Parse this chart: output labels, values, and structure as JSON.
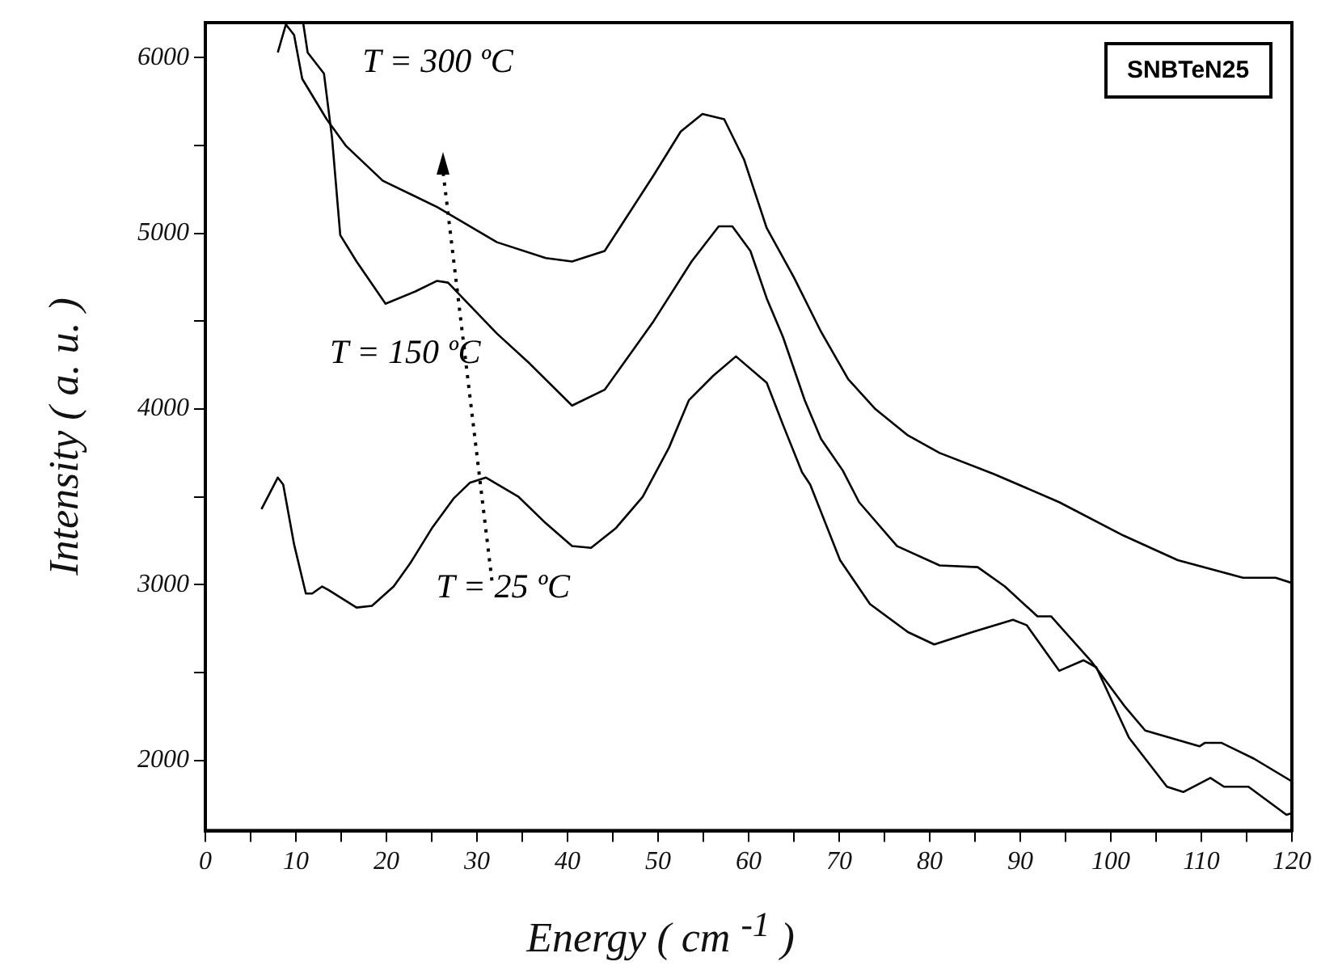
{
  "chart_data": {
    "type": "line",
    "xlabel": "Energy ( cm $^{-1}$ )",
    "ylabel": "Intensity ( a. u. )",
    "xlim": [
      0,
      120
    ],
    "ylim": [
      1600,
      6200
    ],
    "xticks": [
      0,
      {
        "value": 5,
        "label": null
      },
      10,
      {
        "value": 15,
        "label": null
      },
      20,
      {
        "value": 25,
        "label": null
      },
      30,
      {
        "value": 35,
        "label": null
      },
      40,
      {
        "value": 45,
        "label": null
      },
      50,
      {
        "value": 55,
        "label": null
      },
      60,
      {
        "value": 65,
        "label": null
      },
      70,
      {
        "value": 75,
        "label": null
      },
      80,
      {
        "value": 85,
        "label": null
      },
      90,
      {
        "value": 95,
        "label": null
      },
      100,
      {
        "value": 105,
        "label": null
      },
      110,
      {
        "value": 115,
        "label": null
      },
      120
    ],
    "yticks": [
      2000,
      {
        "value": 2500,
        "label": null
      },
      3000,
      {
        "value": 3500,
        "label": null
      },
      4000,
      {
        "value": 4500,
        "label": null
      },
      5000,
      {
        "value": 5500,
        "label": null
      },
      6000
    ],
    "grid": false,
    "legend": false,
    "marker": "none",
    "line_style": "solid",
    "series": [
      {
        "color": "#000000",
        "x": [
          6.2,
          8.0,
          8.6,
          9.8,
          11.1,
          11.8,
          12.9,
          13.6,
          16.7,
          18.4,
          20.8,
          22.6,
          25.0,
          27.4,
          29.2,
          31.0,
          34.6,
          37.6,
          40.5,
          42.6,
          45.3,
          48.3,
          51.2,
          53.4,
          56.1,
          58.6,
          62.0,
          63.8,
          65.9,
          66.8,
          70.1,
          73.4,
          77.6,
          80.5,
          84.7,
          89.2,
          90.7,
          94.3,
          97.0,
          98.4,
          102.0,
          106.2,
          108.0,
          111.0,
          112.5,
          115.2,
          119.4,
          120
        ],
        "values": [
          3430,
          3610,
          3570,
          3230,
          2950,
          2950,
          2990,
          2970,
          2870,
          2880,
          2990,
          3120,
          3320,
          3490,
          3580,
          3610,
          3500,
          3350,
          3220,
          3210,
          3320,
          3500,
          3780,
          4050,
          4190,
          4300,
          4150,
          3910,
          3640,
          3570,
          3140,
          2890,
          2730,
          2660,
          2730,
          2800,
          2770,
          2510,
          2570,
          2530,
          2130,
          1850,
          1820,
          1900,
          1850,
          1850,
          1690,
          1700
        ]
      },
      {
        "color": "#000000",
        "x": [
          10.8,
          11.3,
          13.1,
          14.0,
          14.9,
          16.7,
          19.9,
          23.2,
          25.6,
          26.8,
          32.2,
          35.8,
          40.5,
          44.1,
          49.5,
          53.7,
          56.7,
          58.2,
          60.2,
          62.0,
          63.8,
          66.2,
          68.0,
          70.4,
          72.2,
          76.4,
          81.1,
          85.3,
          88.3,
          91.9,
          93.4,
          97.9,
          101.5,
          103.8,
          109.8,
          110.4,
          112.2,
          115.8,
          120
        ],
        "values": [
          6200,
          6030,
          5910,
          5540,
          4990,
          4840,
          4600,
          4670,
          4730,
          4720,
          4430,
          4260,
          4020,
          4110,
          4500,
          4840,
          5040,
          5040,
          4900,
          4630,
          4410,
          4050,
          3830,
          3650,
          3470,
          3220,
          3110,
          3100,
          2990,
          2820,
          2820,
          2560,
          2310,
          2170,
          2080,
          2100,
          2100,
          2010,
          1880
        ]
      },
      {
        "color": "#000000",
        "x": [
          8.0,
          8.9,
          9.8,
          10.7,
          13.4,
          15.5,
          19.6,
          25.6,
          32.2,
          37.6,
          40.5,
          44.1,
          49.5,
          52.5,
          54.9,
          57.3,
          59.5,
          62.0,
          65.0,
          68.0,
          71.0,
          74.0,
          77.6,
          81.1,
          87.1,
          94.3,
          101.4,
          107.4,
          114.6,
          118.2,
          120
        ],
        "values": [
          6030,
          6190,
          6130,
          5880,
          5650,
          5500,
          5300,
          5150,
          4950,
          4860,
          4840,
          4900,
          5330,
          5580,
          5680,
          5650,
          5420,
          5030,
          4750,
          4440,
          4170,
          4000,
          3850,
          3750,
          3630,
          3470,
          3280,
          3140,
          3040,
          3040,
          3010
        ]
      }
    ],
    "annotations": [
      "T = 300 ºC",
      "T = 150 ºC",
      "T = 25 ºC",
      "SNBTeN25"
    ]
  }
}
